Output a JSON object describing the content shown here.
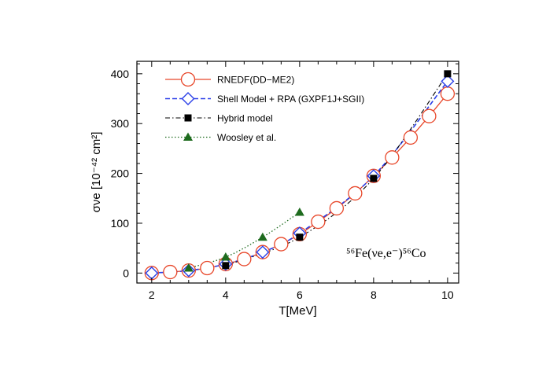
{
  "chart_data": {
    "type": "line",
    "title": "",
    "xlabel": "T[MeV]",
    "ylabel": "σνe [10⁻⁴² cm²]",
    "xlim": [
      1.6,
      10.3
    ],
    "ylim": [
      -20,
      425
    ],
    "xticks": [
      2,
      4,
      6,
      8,
      10
    ],
    "yticks": [
      0,
      100,
      200,
      300,
      400
    ],
    "grid": false,
    "legend_position": "top-left",
    "annotation": "⁵⁶Fe(νe,e⁻)⁵⁶Co",
    "series": [
      {
        "name": "RNEDF(DD−ME2)",
        "marker": "open-circle",
        "line": "solid",
        "color": "#e8472a",
        "x": [
          2,
          2.5,
          3,
          3.5,
          4,
          4.5,
          5,
          5.5,
          6,
          6.5,
          7,
          7.5,
          8,
          8.5,
          9,
          9.5,
          10
        ],
        "y": [
          0,
          2,
          5,
          10,
          18,
          28,
          42,
          58,
          78,
          103,
          130,
          160,
          195,
          232,
          272,
          315,
          360
        ]
      },
      {
        "name": "Shell Model + RPA (GXPF1J+SGII)",
        "marker": "open-diamond",
        "line": "dashed",
        "color": "#2a3fe8",
        "x": [
          2,
          3,
          4,
          5,
          6,
          8,
          10
        ],
        "y": [
          0,
          5,
          18,
          42,
          80,
          195,
          385
        ]
      },
      {
        "name": "Hybrid model",
        "marker": "filled-square",
        "line": "dashdot",
        "color": "#000000",
        "x": [
          4,
          6,
          8,
          10
        ],
        "y": [
          15,
          72,
          190,
          400
        ]
      },
      {
        "name": "Woosley et al.",
        "marker": "filled-triangle",
        "line": "dotted",
        "color": "#1e6b1e",
        "x": [
          3,
          4,
          5,
          6
        ],
        "y": [
          10,
          32,
          72,
          122
        ]
      }
    ]
  }
}
